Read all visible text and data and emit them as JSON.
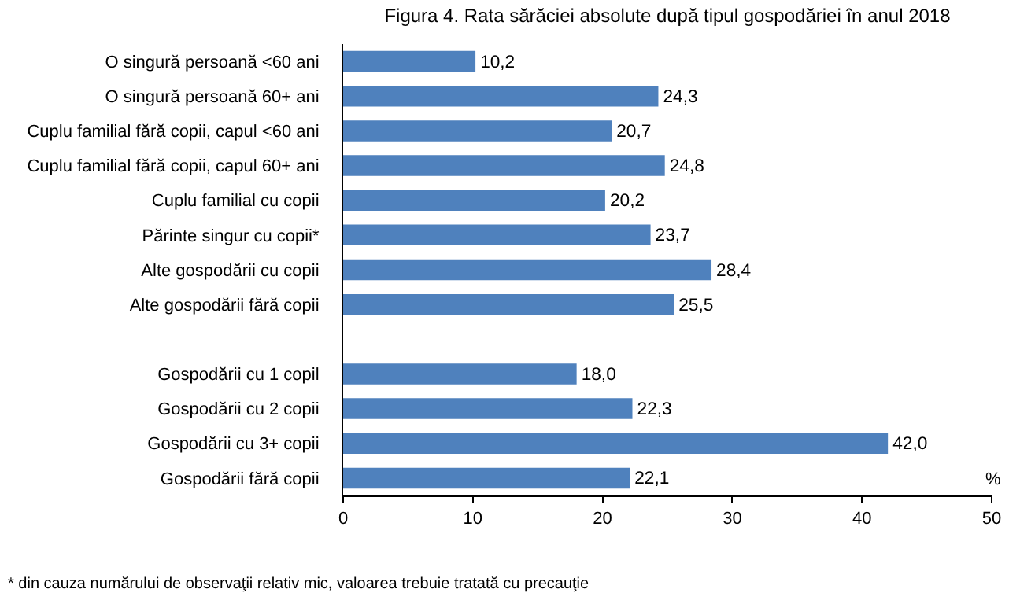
{
  "chart_data": {
    "type": "bar",
    "orientation": "horizontal",
    "title": "Figura 4. Rata sărăciei absolute după tipul gospodăriei în anul 2018",
    "categories": [
      "O singură persoană <60 ani",
      "O singură persoană 60+ ani",
      "Cuplu familial fără copii, capul <60 ani",
      "Cuplu familial fără copii, capul 60+ ani",
      "Cuplu familial cu copii",
      "Părinte singur cu copii*",
      "Alte gospodării cu copii",
      "Alte gospodării fără copii",
      null,
      "Gospodării cu 1 copil",
      "Gospodării cu 2 copii",
      "Gospodării cu 3+ copii",
      "Gospodării fără copii"
    ],
    "values": [
      10.2,
      24.3,
      20.7,
      24.8,
      20.2,
      23.7,
      28.4,
      25.5,
      null,
      18.0,
      22.3,
      42.0,
      22.1
    ],
    "value_labels": [
      "10,2",
      "24,3",
      "20,7",
      "24,8",
      "20,2",
      "23,7",
      "28,4",
      "25,5",
      null,
      "18,0",
      "22,3",
      "42,0",
      "22,1"
    ],
    "color": "#4f81bd",
    "xlabel": "%",
    "xlim": [
      0,
      50
    ],
    "xticks": [
      0,
      10,
      20,
      30,
      40,
      50
    ],
    "legend": false,
    "annotations": [
      "* din cauza numărului de observaţii relativ mic, valoarea trebuie tratată cu precauţie"
    ]
  }
}
